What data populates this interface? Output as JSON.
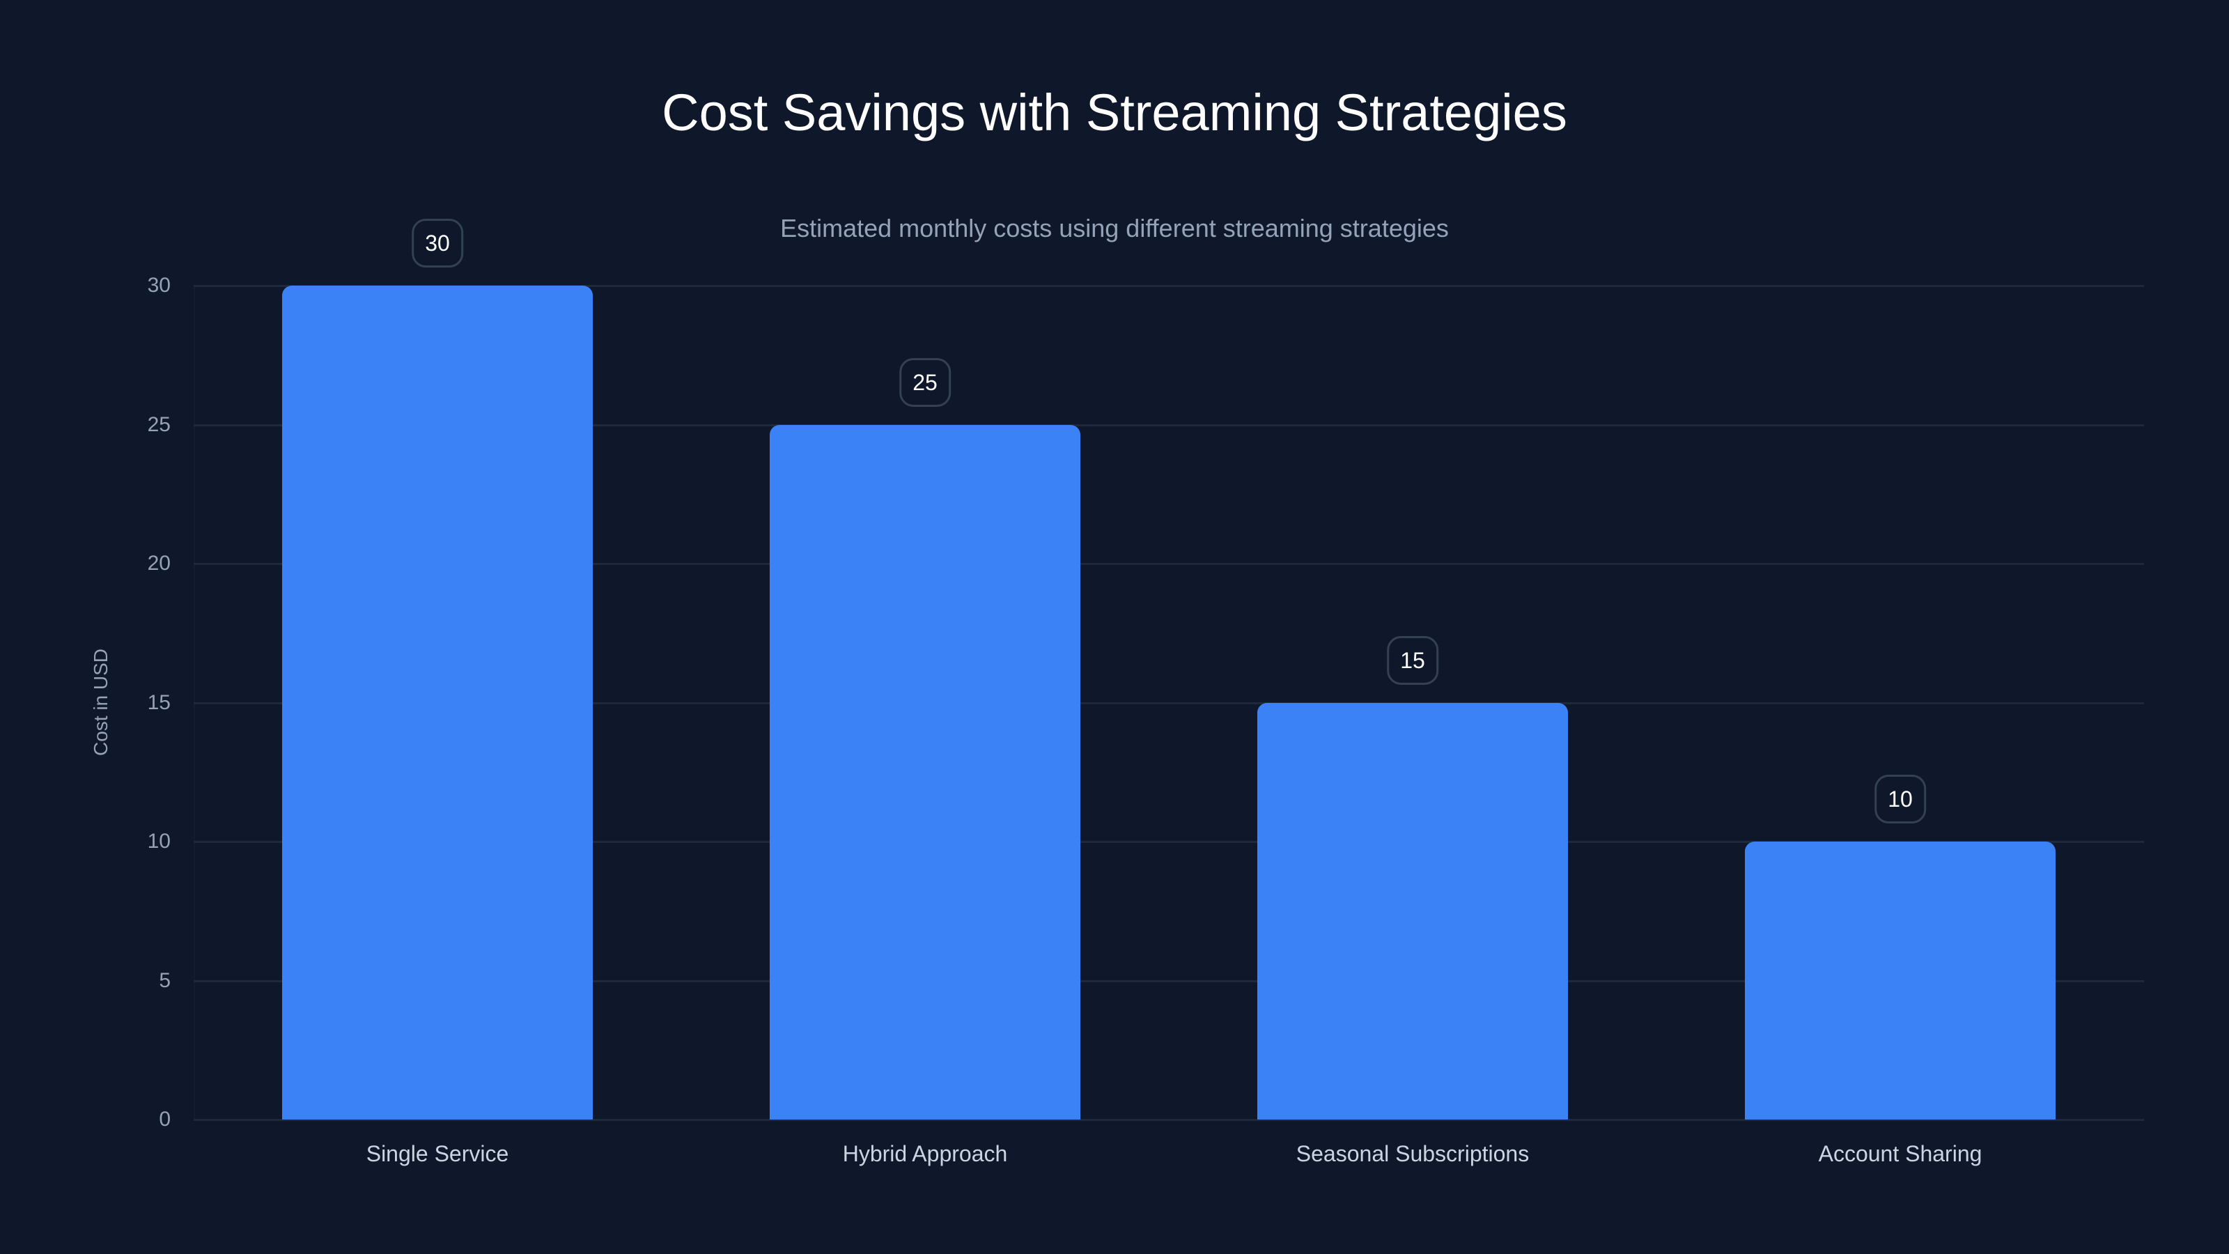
{
  "colors": {
    "background": "#0f172a",
    "bar": "#3b82f6",
    "gridline": "#1e293b",
    "title": "#ffffff",
    "subtitle": "#94a3b8",
    "tick_label": "#94a3b8",
    "category_label": "#cbd5e1",
    "badge_border": "#334155"
  },
  "chart_data": {
    "type": "bar",
    "title": "Cost Savings with Streaming Strategies",
    "subtitle": "Estimated monthly costs using different streaming strategies",
    "xlabel": "",
    "ylabel": "Cost in USD",
    "categories": [
      "Single Service",
      "Hybrid Approach",
      "Seasonal Subscriptions",
      "Account Sharing"
    ],
    "values": [
      30,
      25,
      15,
      10
    ],
    "data_labels": [
      "30",
      "25",
      "15",
      "10"
    ],
    "ylim": [
      0,
      30
    ],
    "yticks": [
      "0",
      "5",
      "10",
      "15",
      "20",
      "25",
      "30"
    ],
    "grid": true,
    "legend": null
  }
}
